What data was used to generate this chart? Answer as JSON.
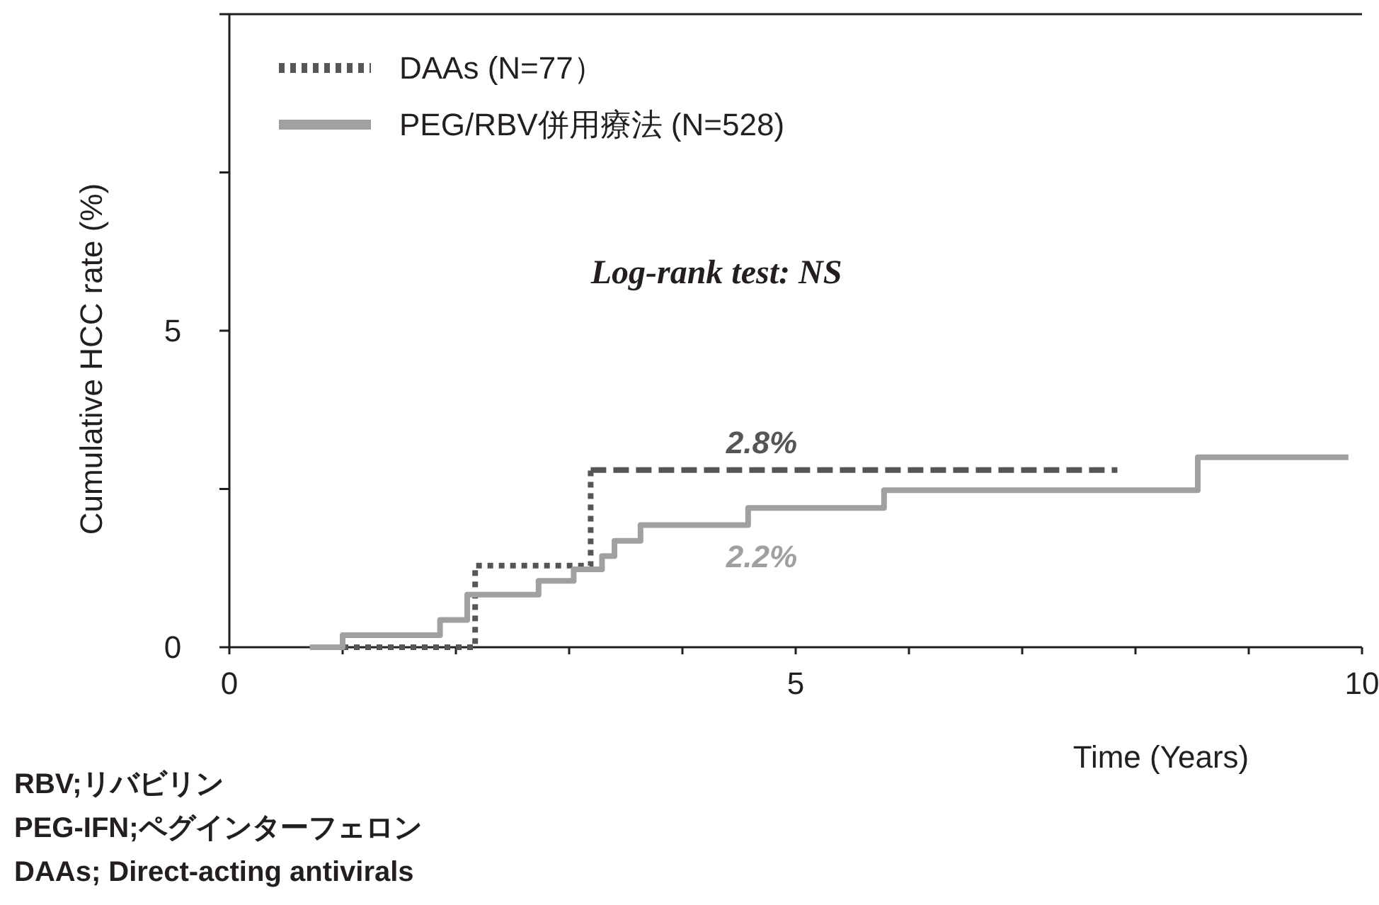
{
  "chart_data": {
    "type": "step",
    "xlabel": "Time (Years)",
    "ylabel": "Cumulative HCC rate (%)",
    "xlim": [
      0,
      10
    ],
    "ylim": [
      0,
      10
    ],
    "xticks": [
      0,
      {
        "value": 1,
        "label": null
      },
      {
        "value": 2,
        "label": null
      },
      {
        "value": 3,
        "label": null
      },
      {
        "value": 4,
        "label": null
      },
      5,
      {
        "value": 6,
        "label": null
      },
      {
        "value": 7,
        "label": null
      },
      {
        "value": 8,
        "label": null
      },
      {
        "value": 9,
        "label": null
      },
      10
    ],
    "yticks": [
      0,
      {
        "value": 2.5,
        "label": null
      },
      5,
      {
        "value": 7.5,
        "label": null
      },
      {
        "value": 10,
        "label": null
      }
    ],
    "grid": false,
    "legend": "top left",
    "series": [
      {
        "name": "DAAs (N=77）",
        "color": "#555555",
        "line_style": "dotted",
        "x": [
          1.0,
          2.17,
          3.19
        ],
        "values": [
          0,
          1.29,
          2.8
        ]
      },
      {
        "color": "#555555",
        "line_style": "dashed",
        "x": [
          3.19,
          7.84
        ],
        "values": [
          2.8,
          2.8
        ]
      },
      {
        "name": "PEG/RBV併用療法 (N=528)",
        "color": "#a0a0a0",
        "line_style": "solid",
        "x": [
          0.71,
          1.0,
          1.86,
          2.1,
          2.73,
          3.04,
          3.29,
          3.4,
          3.63,
          4.58,
          5.78,
          8.55,
          9.88
        ],
        "values": [
          0,
          0.19,
          0.43,
          0.83,
          1.05,
          1.23,
          1.44,
          1.68,
          1.93,
          2.2,
          2.48,
          3.0,
          3.0
        ]
      }
    ],
    "annotations": [
      "Log-rank test: NS",
      {
        "text": "2.8%",
        "x": 4.7,
        "y": 2.8
      },
      {
        "text": "2.2%",
        "x": 4.7,
        "y": 2.2
      },
      "RBV;リバビリン",
      "PEG-IFN;ペグインターフェロン",
      "DAAs; Direct-acting antivirals"
    ]
  }
}
